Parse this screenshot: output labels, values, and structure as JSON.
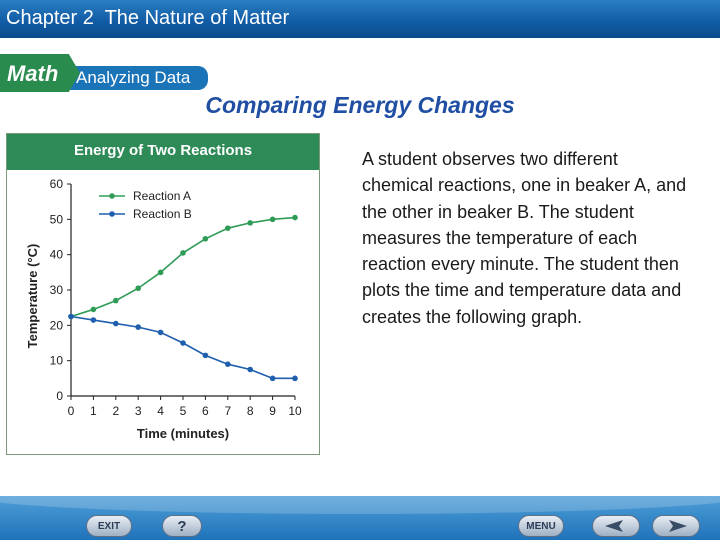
{
  "header": {
    "chapter_title": "Chapter 2  The Nature of Matter"
  },
  "banner": {
    "math_label": "Math",
    "analyzing_label": "Analyzing Data"
  },
  "slide": {
    "title": "Comparing Energy Changes",
    "description": "A student observes two different chemical reactions, one in beaker A, and the other in beaker B. The student measures the temperature of each reaction every minute. The student then plots the time and temperature data and creates the following graph."
  },
  "chart_data": {
    "type": "line",
    "title": "Energy of Two Reactions",
    "xlabel": "Time (minutes)",
    "ylabel": "Temperature (°C)",
    "x": [
      0,
      1,
      2,
      3,
      4,
      5,
      6,
      7,
      8,
      9,
      10
    ],
    "xlim": [
      0,
      10
    ],
    "ylim": [
      0,
      60
    ],
    "xticks": [
      0,
      1,
      2,
      3,
      4,
      5,
      6,
      7,
      8,
      9,
      10
    ],
    "yticks": [
      0,
      10,
      20,
      30,
      40,
      50,
      60
    ],
    "grid": false,
    "legend_position": "top-left",
    "series": [
      {
        "name": "Reaction A",
        "color": "#2e9b57",
        "values": [
          22.5,
          24.5,
          27,
          30.5,
          35,
          40.5,
          44.5,
          47.5,
          49,
          50,
          50.5
        ]
      },
      {
        "name": "Reaction B",
        "color": "#1f5fae",
        "values": [
          22.5,
          21.5,
          20.5,
          19.5,
          18,
          15,
          11.5,
          9,
          7.5,
          5,
          5
        ]
      }
    ]
  },
  "footer": {
    "exit_label": "EXIT",
    "help_label": "?",
    "menu_label": "MENU",
    "prev_icon": "left-arrow-icon",
    "next_icon": "right-arrow-icon"
  }
}
